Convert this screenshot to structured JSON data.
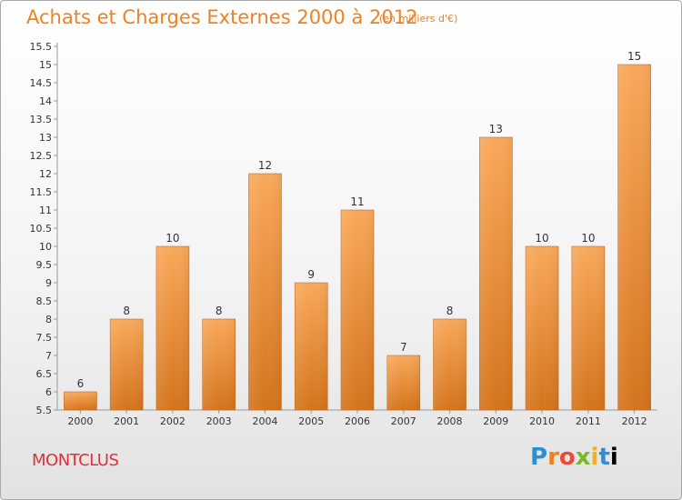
{
  "title": "Achats et Charges Externes 2000 à 2012",
  "subtitle": "(en milliers d'€)",
  "commune": "MONTCLUS",
  "logo": [
    "P",
    "r",
    "o",
    "x",
    "i",
    "t",
    "i"
  ],
  "colors": {
    "bar_top": "#f9a85a",
    "bar_bottom": "#d4741c",
    "title": "#f08122",
    "commune": "#e0303c"
  },
  "chart_data": {
    "type": "bar",
    "title": "Achats et Charges Externes 2000 à 2012",
    "subtitle": "(en milliers d'€)",
    "xlabel": "",
    "ylabel": "",
    "categories": [
      "2000",
      "2001",
      "2002",
      "2003",
      "2004",
      "2005",
      "2006",
      "2007",
      "2008",
      "2009",
      "2010",
      "2011",
      "2012"
    ],
    "values": [
      6,
      8,
      10,
      8,
      12,
      9,
      11,
      7,
      8,
      13,
      10,
      10,
      15
    ],
    "ylim": [
      5.5,
      15.5
    ],
    "yticks": [
      "5.5",
      "6",
      "6.5",
      "7",
      "7.5",
      "8",
      "8.5",
      "9",
      "9.5",
      "10",
      "10.5",
      "11",
      "11.5",
      "12",
      "12.5",
      "13",
      "13.5",
      "14",
      "14.5",
      "15",
      "15.5"
    ],
    "grid": false,
    "legend": "none"
  }
}
